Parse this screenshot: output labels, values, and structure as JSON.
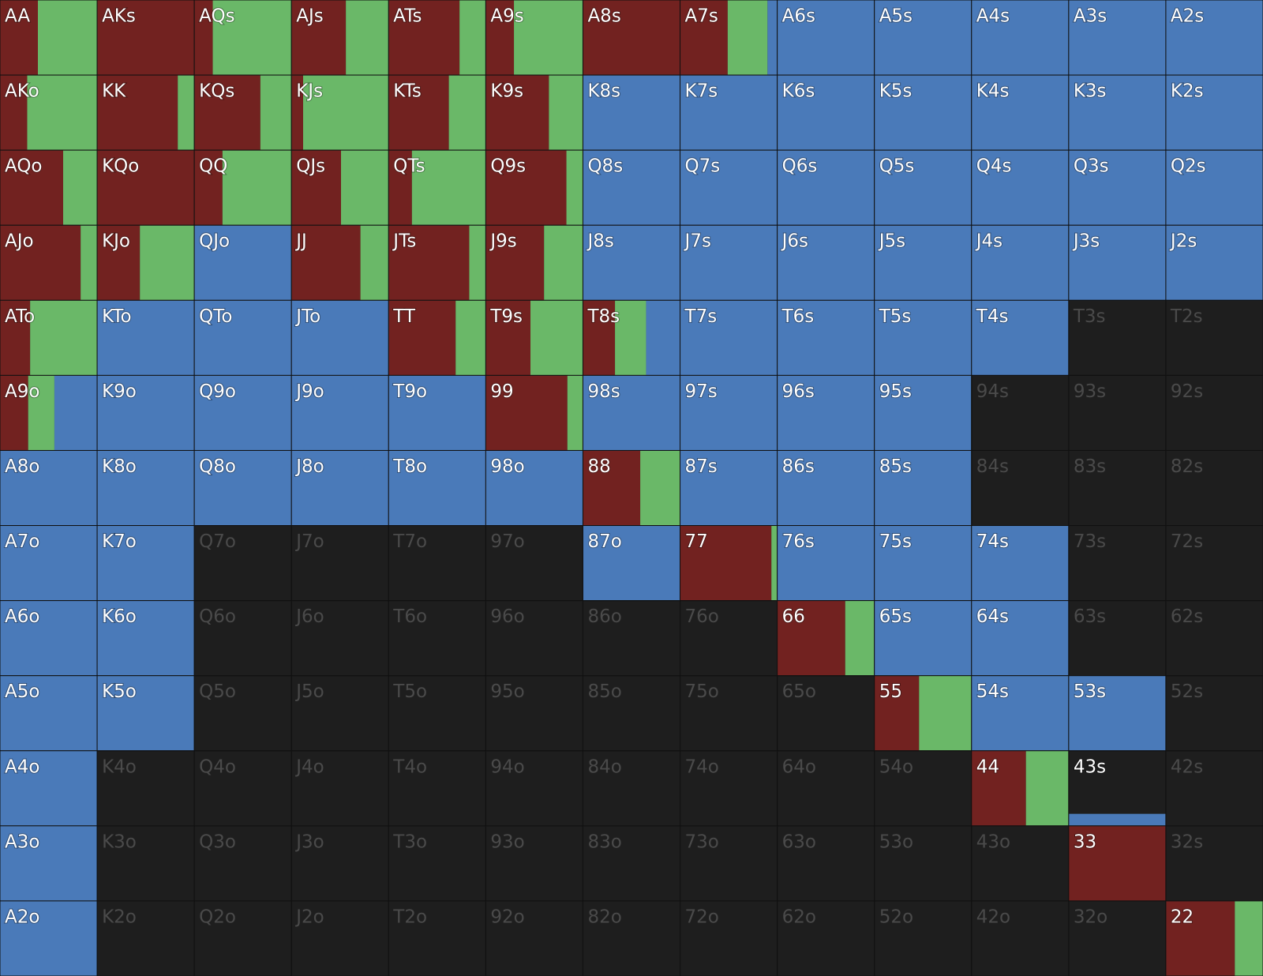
{
  "segment_colors": [
    "#722220",
    "#6ab868",
    "#4a7ab9"
  ],
  "grid": [
    [
      {
        "label": "AA",
        "segments": [
          0.39,
          0.61,
          0
        ]
      },
      {
        "label": "AKs",
        "segments": [
          1,
          0,
          0
        ]
      },
      {
        "label": "AQs",
        "segments": [
          0.19,
          0.81,
          0
        ]
      },
      {
        "label": "AJs",
        "segments": [
          0.56,
          0.44,
          0
        ]
      },
      {
        "label": "ATs",
        "segments": [
          0.73,
          0.27,
          0
        ]
      },
      {
        "label": "A9s",
        "segments": [
          0.29,
          0.71,
          0
        ]
      },
      {
        "label": "A8s",
        "segments": [
          1,
          0,
          0
        ]
      },
      {
        "label": "A7s",
        "segments": [
          0.49,
          0.41,
          0.1
        ]
      },
      {
        "label": "A6s",
        "segments": [
          0,
          0,
          1
        ]
      },
      {
        "label": "A5s",
        "segments": [
          0,
          0,
          1
        ]
      },
      {
        "label": "A4s",
        "segments": [
          0,
          0,
          1
        ]
      },
      {
        "label": "A3s",
        "segments": [
          0,
          0,
          1
        ]
      },
      {
        "label": "A2s",
        "segments": [
          0,
          0,
          1
        ]
      }
    ],
    [
      {
        "label": "AKo",
        "segments": [
          0.28,
          0.72,
          0
        ]
      },
      {
        "label": "KK",
        "segments": [
          0.83,
          0.17,
          0
        ]
      },
      {
        "label": "KQs",
        "segments": [
          0.68,
          0.32,
          0
        ]
      },
      {
        "label": "KJs",
        "segments": [
          0.12,
          0.88,
          0
        ]
      },
      {
        "label": "KTs",
        "segments": [
          0.62,
          0.38,
          0
        ]
      },
      {
        "label": "K9s",
        "segments": [
          0.65,
          0.35,
          0
        ]
      },
      {
        "label": "K8s",
        "segments": [
          0,
          0,
          1
        ]
      },
      {
        "label": "K7s",
        "segments": [
          0,
          0,
          1
        ]
      },
      {
        "label": "K6s",
        "segments": [
          0,
          0,
          1
        ]
      },
      {
        "label": "K5s",
        "segments": [
          0,
          0,
          1
        ]
      },
      {
        "label": "K4s",
        "segments": [
          0,
          0,
          1
        ]
      },
      {
        "label": "K3s",
        "segments": [
          0,
          0,
          1
        ]
      },
      {
        "label": "K2s",
        "segments": [
          0,
          0,
          1
        ]
      }
    ],
    [
      {
        "label": "AQo",
        "segments": [
          0.65,
          0.35,
          0
        ]
      },
      {
        "label": "KQo",
        "segments": [
          1,
          0,
          0
        ]
      },
      {
        "label": "QQ",
        "segments": [
          0.29,
          0.71,
          0
        ]
      },
      {
        "label": "QJs",
        "segments": [
          0.51,
          0.49,
          0
        ]
      },
      {
        "label": "QTs",
        "segments": [
          0.24,
          0.76,
          0
        ]
      },
      {
        "label": "Q9s",
        "segments": [
          0.83,
          0.17,
          0
        ]
      },
      {
        "label": "Q8s",
        "segments": [
          0,
          0,
          1
        ]
      },
      {
        "label": "Q7s",
        "segments": [
          0,
          0,
          1
        ]
      },
      {
        "label": "Q6s",
        "segments": [
          0,
          0,
          1
        ]
      },
      {
        "label": "Q5s",
        "segments": [
          0,
          0,
          1
        ]
      },
      {
        "label": "Q4s",
        "segments": [
          0,
          0,
          1
        ]
      },
      {
        "label": "Q3s",
        "segments": [
          0,
          0,
          1
        ]
      },
      {
        "label": "Q2s",
        "segments": [
          0,
          0,
          1
        ]
      }
    ],
    [
      {
        "label": "AJo",
        "segments": [
          0.83,
          0.17,
          0
        ]
      },
      {
        "label": "KJo",
        "segments": [
          0.44,
          0.56,
          0
        ]
      },
      {
        "label": "QJo",
        "segments": [
          0,
          0,
          1
        ]
      },
      {
        "label": "JJ",
        "segments": [
          0.71,
          0.29,
          0
        ]
      },
      {
        "label": "JTs",
        "segments": [
          0.83,
          0.17,
          0
        ]
      },
      {
        "label": "J9s",
        "segments": [
          0.6,
          0.4,
          0
        ]
      },
      {
        "label": "J8s",
        "segments": [
          0,
          0,
          1
        ]
      },
      {
        "label": "J7s",
        "segments": [
          0,
          0,
          1
        ]
      },
      {
        "label": "J6s",
        "segments": [
          0,
          0,
          1
        ]
      },
      {
        "label": "J5s",
        "segments": [
          0,
          0,
          1
        ]
      },
      {
        "label": "J4s",
        "segments": [
          0,
          0,
          1
        ]
      },
      {
        "label": "J3s",
        "segments": [
          0,
          0,
          1
        ]
      },
      {
        "label": "J2s",
        "segments": [
          0,
          0,
          1
        ]
      }
    ],
    [
      {
        "label": "ATo",
        "segments": [
          0.31,
          0.69,
          0
        ]
      },
      {
        "label": "KTo",
        "segments": [
          0,
          0,
          1
        ]
      },
      {
        "label": "QTo",
        "segments": [
          0,
          0,
          1
        ]
      },
      {
        "label": "JTo",
        "segments": [
          0,
          0,
          1
        ]
      },
      {
        "label": "TT",
        "segments": [
          0.69,
          0.31,
          0
        ]
      },
      {
        "label": "T9s",
        "segments": [
          0.46,
          0.54,
          0
        ]
      },
      {
        "label": "T8s",
        "segments": [
          0.33,
          0.32,
          0.35
        ]
      },
      {
        "label": "T7s",
        "segments": [
          0,
          0,
          1
        ]
      },
      {
        "label": "T6s",
        "segments": [
          0,
          0,
          1
        ]
      },
      {
        "label": "T5s",
        "segments": [
          0,
          0,
          1
        ]
      },
      {
        "label": "T4s",
        "segments": [
          0,
          0,
          1
        ]
      },
      {
        "label": "T3s",
        "segments": [
          0,
          0,
          0
        ]
      },
      {
        "label": "T2s",
        "segments": [
          0,
          0,
          0
        ]
      }
    ],
    [
      {
        "label": "A9o",
        "segments": [
          0.29,
          0.27,
          0.44
        ]
      },
      {
        "label": "K9o",
        "segments": [
          0,
          0,
          1
        ]
      },
      {
        "label": "Q9o",
        "segments": [
          0,
          0,
          1
        ]
      },
      {
        "label": "J9o",
        "segments": [
          0,
          0,
          1
        ]
      },
      {
        "label": "T9o",
        "segments": [
          0,
          0,
          1
        ]
      },
      {
        "label": "99",
        "segments": [
          0.84,
          0.16,
          0
        ]
      },
      {
        "label": "98s",
        "segments": [
          0,
          0,
          1
        ]
      },
      {
        "label": "97s",
        "segments": [
          0,
          0,
          1
        ]
      },
      {
        "label": "96s",
        "segments": [
          0,
          0,
          1
        ]
      },
      {
        "label": "95s",
        "segments": [
          0,
          0,
          1
        ]
      },
      {
        "label": "94s",
        "segments": [
          0,
          0,
          0
        ]
      },
      {
        "label": "93s",
        "segments": [
          0,
          0,
          0
        ]
      },
      {
        "label": "92s",
        "segments": [
          0,
          0,
          0
        ]
      }
    ],
    [
      {
        "label": "A8o",
        "segments": [
          0,
          0,
          1
        ]
      },
      {
        "label": "K8o",
        "segments": [
          0,
          0,
          1
        ]
      },
      {
        "label": "Q8o",
        "segments": [
          0,
          0,
          1
        ]
      },
      {
        "label": "J8o",
        "segments": [
          0,
          0,
          1
        ]
      },
      {
        "label": "T8o",
        "segments": [
          0,
          0,
          1
        ]
      },
      {
        "label": "98o",
        "segments": [
          0,
          0,
          1
        ]
      },
      {
        "label": "88",
        "segments": [
          0.59,
          0.41,
          0
        ]
      },
      {
        "label": "87s",
        "segments": [
          0,
          0,
          1
        ]
      },
      {
        "label": "86s",
        "segments": [
          0,
          0,
          1
        ]
      },
      {
        "label": "85s",
        "segments": [
          0,
          0,
          1
        ]
      },
      {
        "label": "84s",
        "segments": [
          0,
          0,
          0
        ]
      },
      {
        "label": "83s",
        "segments": [
          0,
          0,
          0
        ]
      },
      {
        "label": "82s",
        "segments": [
          0,
          0,
          0
        ]
      }
    ],
    [
      {
        "label": "A7o",
        "segments": [
          0,
          0,
          1
        ]
      },
      {
        "label": "K7o",
        "segments": [
          0,
          0,
          1
        ]
      },
      {
        "label": "Q7o",
        "segments": [
          0,
          0,
          0
        ]
      },
      {
        "label": "J7o",
        "segments": [
          0,
          0,
          0
        ]
      },
      {
        "label": "T7o",
        "segments": [
          0,
          0,
          0
        ]
      },
      {
        "label": "97o",
        "segments": [
          0,
          0,
          0
        ]
      },
      {
        "label": "87o",
        "segments": [
          0,
          0,
          1
        ]
      },
      {
        "label": "77",
        "segments": [
          0.94,
          0.06,
          0
        ]
      },
      {
        "label": "76s",
        "segments": [
          0,
          0,
          1
        ]
      },
      {
        "label": "75s",
        "segments": [
          0,
          0,
          1
        ]
      },
      {
        "label": "74s",
        "segments": [
          0,
          0,
          1
        ]
      },
      {
        "label": "73s",
        "segments": [
          0,
          0,
          0
        ]
      },
      {
        "label": "72s",
        "segments": [
          0,
          0,
          0
        ]
      }
    ],
    [
      {
        "label": "A6o",
        "segments": [
          0,
          0,
          1
        ]
      },
      {
        "label": "K6o",
        "segments": [
          0,
          0,
          1
        ]
      },
      {
        "label": "Q6o",
        "segments": [
          0,
          0,
          0
        ]
      },
      {
        "label": "J6o",
        "segments": [
          0,
          0,
          0
        ]
      },
      {
        "label": "T6o",
        "segments": [
          0,
          0,
          0
        ]
      },
      {
        "label": "96o",
        "segments": [
          0,
          0,
          0
        ]
      },
      {
        "label": "86o",
        "segments": [
          0,
          0,
          0
        ]
      },
      {
        "label": "76o",
        "segments": [
          0,
          0,
          0
        ]
      },
      {
        "label": "66",
        "segments": [
          0.7,
          0.3,
          0
        ]
      },
      {
        "label": "65s",
        "segments": [
          0,
          0,
          1
        ]
      },
      {
        "label": "64s",
        "segments": [
          0,
          0,
          1
        ]
      },
      {
        "label": "63s",
        "segments": [
          0,
          0,
          0
        ]
      },
      {
        "label": "62s",
        "segments": [
          0,
          0,
          0
        ]
      }
    ],
    [
      {
        "label": "A5o",
        "segments": [
          0,
          0,
          1
        ]
      },
      {
        "label": "K5o",
        "segments": [
          0,
          0,
          1
        ]
      },
      {
        "label": "Q5o",
        "segments": [
          0,
          0,
          0
        ]
      },
      {
        "label": "J5o",
        "segments": [
          0,
          0,
          0
        ]
      },
      {
        "label": "T5o",
        "segments": [
          0,
          0,
          0
        ]
      },
      {
        "label": "95o",
        "segments": [
          0,
          0,
          0
        ]
      },
      {
        "label": "85o",
        "segments": [
          0,
          0,
          0
        ]
      },
      {
        "label": "75o",
        "segments": [
          0,
          0,
          0
        ]
      },
      {
        "label": "65o",
        "segments": [
          0,
          0,
          0
        ]
      },
      {
        "label": "55",
        "segments": [
          0.46,
          0.54,
          0
        ]
      },
      {
        "label": "54s",
        "segments": [
          0,
          0,
          1
        ]
      },
      {
        "label": "53s",
        "segments": [
          0,
          0,
          1
        ]
      },
      {
        "label": "52s",
        "segments": [
          0,
          0,
          0
        ]
      }
    ],
    [
      {
        "label": "A4o",
        "segments": [
          0,
          0,
          1
        ]
      },
      {
        "label": "K4o",
        "segments": [
          0,
          0,
          0
        ]
      },
      {
        "label": "Q4o",
        "segments": [
          0,
          0,
          0
        ]
      },
      {
        "label": "J4o",
        "segments": [
          0,
          0,
          0
        ]
      },
      {
        "label": "T4o",
        "segments": [
          0,
          0,
          0
        ]
      },
      {
        "label": "94o",
        "segments": [
          0,
          0,
          0
        ]
      },
      {
        "label": "84o",
        "segments": [
          0,
          0,
          0
        ]
      },
      {
        "label": "74o",
        "segments": [
          0,
          0,
          0
        ]
      },
      {
        "label": "64o",
        "segments": [
          0,
          0,
          0
        ]
      },
      {
        "label": "54o",
        "segments": [
          0,
          0,
          0
        ]
      },
      {
        "label": "44",
        "segments": [
          0.56,
          0.44,
          0
        ]
      },
      {
        "label": "43s",
        "segments": [
          0,
          0,
          1
        ],
        "weight": 0.16
      },
      {
        "label": "42s",
        "segments": [
          0,
          0,
          0
        ]
      }
    ],
    [
      {
        "label": "A3o",
        "segments": [
          0,
          0,
          1
        ]
      },
      {
        "label": "K3o",
        "segments": [
          0,
          0,
          0
        ]
      },
      {
        "label": "Q3o",
        "segments": [
          0,
          0,
          0
        ]
      },
      {
        "label": "J3o",
        "segments": [
          0,
          0,
          0
        ]
      },
      {
        "label": "T3o",
        "segments": [
          0,
          0,
          0
        ]
      },
      {
        "label": "93o",
        "segments": [
          0,
          0,
          0
        ]
      },
      {
        "label": "83o",
        "segments": [
          0,
          0,
          0
        ]
      },
      {
        "label": "73o",
        "segments": [
          0,
          0,
          0
        ]
      },
      {
        "label": "63o",
        "segments": [
          0,
          0,
          0
        ]
      },
      {
        "label": "53o",
        "segments": [
          0,
          0,
          0
        ]
      },
      {
        "label": "43o",
        "segments": [
          0,
          0,
          0
        ]
      },
      {
        "label": "33",
        "segments": [
          1,
          0,
          0
        ]
      },
      {
        "label": "32s",
        "segments": [
          0,
          0,
          0
        ]
      }
    ],
    [
      {
        "label": "A2o",
        "segments": [
          0,
          0,
          1
        ]
      },
      {
        "label": "K2o",
        "segments": [
          0,
          0,
          0
        ]
      },
      {
        "label": "Q2o",
        "segments": [
          0,
          0,
          0
        ]
      },
      {
        "label": "J2o",
        "segments": [
          0,
          0,
          0
        ]
      },
      {
        "label": "T2o",
        "segments": [
          0,
          0,
          0
        ]
      },
      {
        "label": "92o",
        "segments": [
          0,
          0,
          0
        ]
      },
      {
        "label": "82o",
        "segments": [
          0,
          0,
          0
        ]
      },
      {
        "label": "72o",
        "segments": [
          0,
          0,
          0
        ]
      },
      {
        "label": "62o",
        "segments": [
          0,
          0,
          0
        ]
      },
      {
        "label": "52o",
        "segments": [
          0,
          0,
          0
        ]
      },
      {
        "label": "42o",
        "segments": [
          0,
          0,
          0
        ]
      },
      {
        "label": "32o",
        "segments": [
          0,
          0,
          0
        ]
      },
      {
        "label": "22",
        "segments": [
          0.71,
          0.29,
          0
        ]
      }
    ]
  ]
}
